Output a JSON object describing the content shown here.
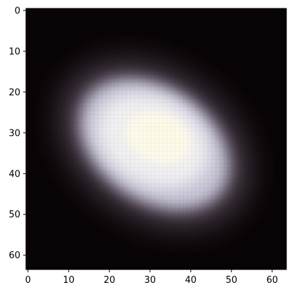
{
  "image": {
    "description_kind": "pixelated astronomical source image",
    "grid_size": [
      64,
      64
    ],
    "colors": {
      "background": "#080405",
      "core": "#fffbea",
      "inner_glow": "#f1f0f2",
      "outer_glow": "#c8c6d8",
      "halo": "#4f4351"
    }
  },
  "axes": {
    "x_ticks": [
      "0",
      "10",
      "20",
      "30",
      "40",
      "50",
      "60"
    ],
    "y_ticks": [
      "0",
      "10",
      "20",
      "30",
      "40",
      "50",
      "60"
    ],
    "x_tick_values": [
      0,
      10,
      20,
      30,
      40,
      50,
      60
    ],
    "y_tick_values": [
      0,
      10,
      20,
      30,
      40,
      50,
      60
    ],
    "xlim": [
      -0.5,
      63.5
    ],
    "ylim": [
      63.5,
      -0.5
    ]
  }
}
